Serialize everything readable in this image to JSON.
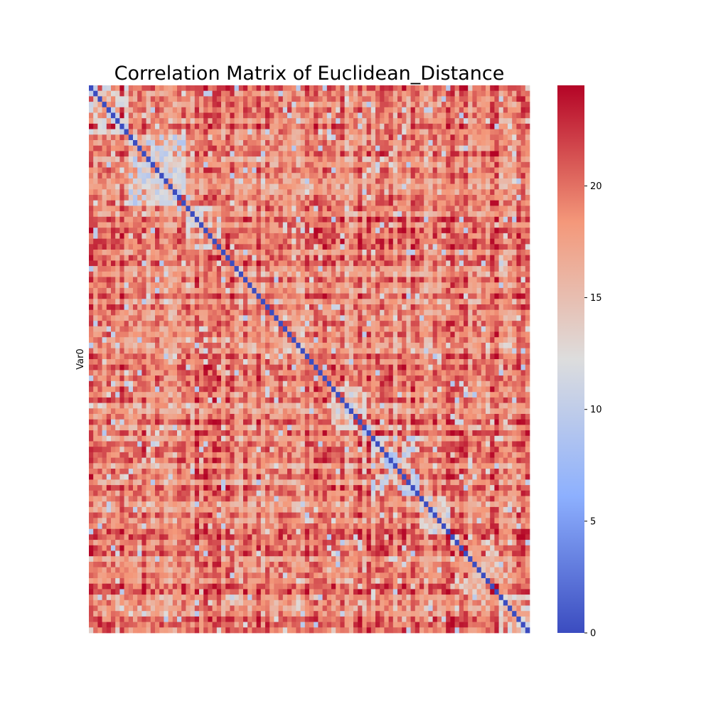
{
  "chart_data": {
    "type": "heatmap",
    "title": "Correlation Matrix of Euclidean_Distance",
    "ylabel": "Var0",
    "xlabel": "",
    "n_variables": 100,
    "diagonal_value": 0,
    "value_range": [
      0,
      24.5
    ],
    "colormap": "coolwarm",
    "colorbar": {
      "ticks": [
        0,
        5,
        10,
        15,
        20
      ],
      "range": [
        0,
        24.5
      ]
    },
    "low_distance_clusters": [
      {
        "start": 0,
        "end": 9,
        "value": 12.5
      },
      {
        "start": 9,
        "end": 22,
        "value": 12
      },
      {
        "start": 22,
        "end": 30,
        "value": 13.5
      },
      {
        "start": 55,
        "end": 64,
        "value": 13.5
      },
      {
        "start": 64,
        "end": 75,
        "value": 11
      },
      {
        "start": 75,
        "end": 82,
        "value": 13
      },
      {
        "start": 82,
        "end": 93,
        "value": 15
      },
      {
        "start": 93,
        "end": 100,
        "value": 14
      }
    ],
    "typical_off_diagonal_range": [
      12,
      24.5
    ],
    "legend": "colorbar-right"
  }
}
